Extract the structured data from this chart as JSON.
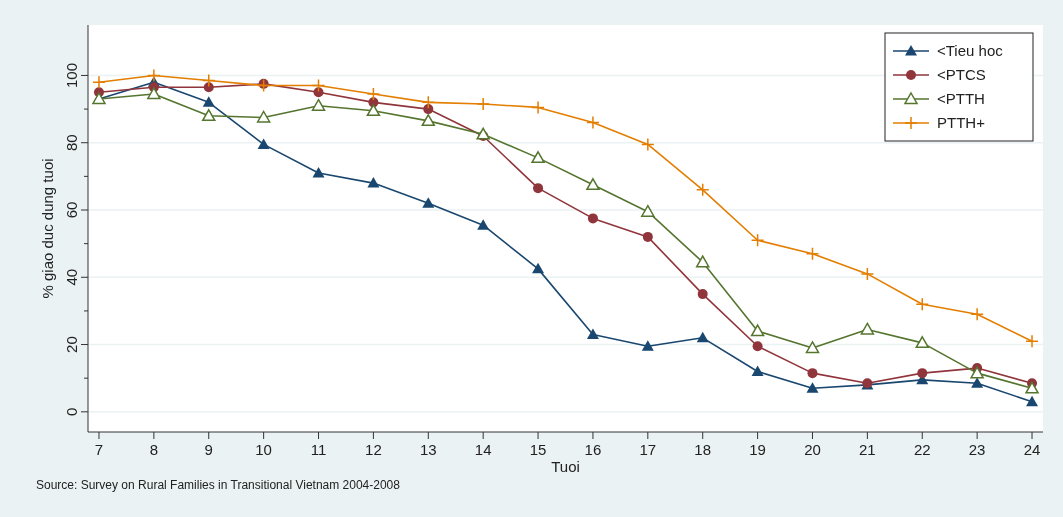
{
  "chart_data": {
    "type": "line",
    "xlabel": "Tuoi",
    "ylabel": "% giao duc dung tuoi",
    "annotations": [
      "Source: Survey on Rural Families in Transitional Vietnam 2004-2008"
    ],
    "x": [
      7,
      8,
      9,
      10,
      11,
      12,
      13,
      14,
      15,
      16,
      17,
      18,
      19,
      20,
      21,
      22,
      23,
      24
    ],
    "xlim": [
      6.8,
      24.2
    ],
    "xticks": [
      7,
      8,
      9,
      10,
      11,
      12,
      13,
      14,
      15,
      16,
      17,
      18,
      19,
      20,
      21,
      22,
      23,
      24
    ],
    "ylim": [
      -6,
      115
    ],
    "yticks": [
      0,
      {
        "value": 10,
        "label": null
      },
      20,
      {
        "value": 30,
        "label": null
      },
      40,
      {
        "value": 50,
        "label": null
      },
      60,
      {
        "value": 70,
        "label": null
      },
      80,
      {
        "value": 90,
        "label": null
      },
      100
    ],
    "grid": "y",
    "legend": "top right",
    "line_style": "solid",
    "series": [
      {
        "name": "<Tieu hoc",
        "color": "#1a476f",
        "marker": "triangle",
        "values": [
          93,
          98,
          92,
          79.5,
          71,
          68,
          62,
          55.5,
          42.5,
          23,
          19.5,
          22,
          12,
          7,
          8,
          9.5,
          8.5,
          3
        ]
      },
      {
        "name": "<PTCS",
        "color": "#90353b",
        "marker": "circle",
        "values": [
          95,
          96.5,
          96.5,
          97.5,
          95,
          92,
          90,
          82,
          66.5,
          57.5,
          52,
          35,
          19.5,
          11.5,
          8.5,
          11.5,
          13,
          8.5
        ]
      },
      {
        "name": "<PTTH",
        "color": "#55752f",
        "marker": "triangle-open",
        "values": [
          93,
          94.5,
          88,
          87.5,
          91,
          89.5,
          86.5,
          82.5,
          75.5,
          67.5,
          59.5,
          44.5,
          24,
          19,
          24.5,
          20.5,
          11.5,
          7
        ]
      },
      {
        "name": "PTTH+",
        "color": "#e37e00",
        "marker": "cross",
        "values": [
          98,
          100,
          98.5,
          97,
          97,
          94.5,
          92,
          91.5,
          90.5,
          86,
          79.5,
          66,
          51,
          47,
          41,
          32,
          29,
          21
        ]
      }
    ]
  }
}
